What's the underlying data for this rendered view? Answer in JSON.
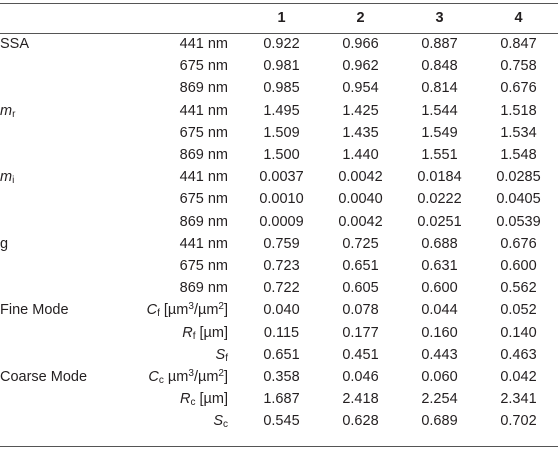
{
  "columns": [
    "1",
    "2",
    "3",
    "4"
  ],
  "rows": [
    {
      "group": "SSA",
      "param": {
        "text": "441 nm"
      },
      "values": [
        "0.922",
        "0.966",
        "0.887",
        "0.847"
      ]
    },
    {
      "group": "",
      "param": {
        "text": "675 nm"
      },
      "values": [
        "0.981",
        "0.962",
        "0.848",
        "0.758"
      ]
    },
    {
      "group": "",
      "param": {
        "text": "869 nm"
      },
      "values": [
        "0.985",
        "0.954",
        "0.814",
        "0.676"
      ]
    },
    {
      "group_sym": "m",
      "group_sub": "r",
      "param": {
        "text": "441 nm"
      },
      "values": [
        "1.495",
        "1.425",
        "1.544",
        "1.518"
      ]
    },
    {
      "group": "",
      "param": {
        "text": "675 nm"
      },
      "values": [
        "1.509",
        "1.435",
        "1.549",
        "1.534"
      ]
    },
    {
      "group": "",
      "param": {
        "text": "869 nm"
      },
      "values": [
        "1.500",
        "1.440",
        "1.551",
        "1.548"
      ]
    },
    {
      "group_sym": "m",
      "group_sub": "i",
      "param": {
        "text": "441 nm"
      },
      "values": [
        "0.0037",
        "0.0042",
        "0.0184",
        "0.0285"
      ]
    },
    {
      "group": "",
      "param": {
        "text": "675 nm"
      },
      "values": [
        "0.0010",
        "0.0040",
        "0.0222",
        "0.0405"
      ]
    },
    {
      "group": "",
      "param": {
        "text": "869 nm"
      },
      "values": [
        "0.0009",
        "0.0042",
        "0.0251",
        "0.0539"
      ]
    },
    {
      "group": "g",
      "param": {
        "text": "441 nm"
      },
      "values": [
        "0.759",
        "0.725",
        "0.688",
        "0.676"
      ]
    },
    {
      "group": "",
      "param": {
        "text": "675 nm"
      },
      "values": [
        "0.723",
        "0.651",
        "0.631",
        "0.600"
      ]
    },
    {
      "group": "",
      "param": {
        "text": "869 nm"
      },
      "values": [
        "0.722",
        "0.605",
        "0.600",
        "0.562"
      ]
    },
    {
      "group": "Fine Mode",
      "param": {
        "sym": "C",
        "sub": "f",
        "unit_pre": " [µm",
        "unit_sup": "3",
        "unit_mid": "/µm",
        "unit_sup2": "2",
        "unit_post": "]"
      },
      "values": [
        "0.040",
        "0.078",
        "0.044",
        "0.052"
      ]
    },
    {
      "group": "",
      "param": {
        "sym": "R",
        "sub": "f",
        "unit_pre": " [µm]"
      },
      "values": [
        "0.115",
        "0.177",
        "0.160",
        "0.140"
      ]
    },
    {
      "group": "",
      "param": {
        "sym": "S",
        "sub": "f"
      },
      "values": [
        "0.651",
        "0.451",
        "0.443",
        "0.463"
      ]
    },
    {
      "group": "Coarse Mode",
      "param": {
        "sym": "C",
        "sub": "c",
        "unit_pre": " µm",
        "unit_sup": "3",
        "unit_mid": "/µm",
        "unit_sup2": "2",
        "unit_post": "]"
      },
      "values": [
        "0.358",
        "0.046",
        "0.060",
        "0.042"
      ]
    },
    {
      "group": "",
      "param": {
        "sym": "R",
        "sub": "c",
        "unit_pre": " [µm]"
      },
      "values": [
        "1.687",
        "2.418",
        "2.254",
        "2.341"
      ]
    },
    {
      "group": "",
      "param": {
        "sym": "S",
        "sub": "c"
      },
      "values": [
        "0.545",
        "0.628",
        "0.689",
        "0.702"
      ]
    }
  ]
}
